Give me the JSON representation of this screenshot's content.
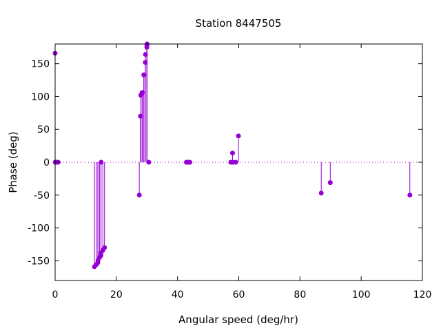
{
  "chart_data": {
    "type": "scatter",
    "style": "impulses-with-points",
    "title": "Station 8447505",
    "xlabel": "Angular speed (deg/hr)",
    "ylabel": "Phase (deg)",
    "xlim": [
      0,
      120
    ],
    "ylim": [
      -180,
      180
    ],
    "xticks": [
      0,
      20,
      40,
      60,
      80,
      100,
      120
    ],
    "yticks": [
      -150,
      -100,
      -50,
      0,
      50,
      100,
      150
    ],
    "grid": false,
    "zero_line": "dotted",
    "series": [
      {
        "color": "#9400d3",
        "x": [
          0.0,
          0.04,
          0.08,
          0.5,
          1.0,
          12.85,
          13.4,
          13.94,
          14.0,
          14.5,
          14.96,
          15.0,
          15.04,
          15.59,
          16.14,
          27.5,
          27.9,
          28.0,
          28.4,
          28.5,
          28.98,
          29.0,
          29.46,
          29.52,
          29.95,
          30.0,
          30.04,
          30.6,
          42.9,
          43.0,
          43.5,
          44.0,
          57.4,
          57.97,
          58.1,
          58.98,
          59.9,
          86.95,
          89.9,
          115.9
        ],
        "y": [
          166,
          0,
          0,
          0,
          0,
          -159,
          -156,
          -153,
          -150,
          -145,
          -142,
          -138,
          0,
          -134,
          -130,
          -50,
          70,
          102,
          106,
          106,
          133,
          133,
          152,
          164,
          175,
          178,
          180,
          0,
          0,
          0,
          0,
          0,
          0,
          14,
          0,
          0,
          40,
          -47,
          -31,
          -50
        ]
      }
    ]
  }
}
